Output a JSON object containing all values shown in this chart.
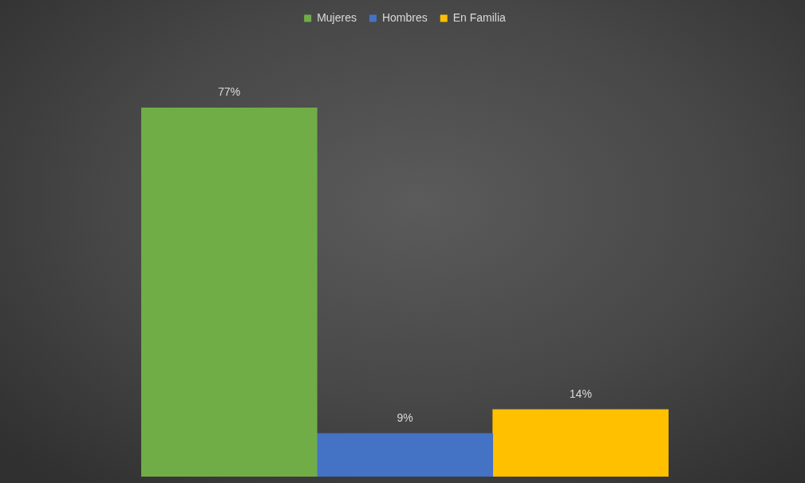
{
  "chart_data": {
    "type": "bar",
    "categories": [
      null
    ],
    "series": [
      {
        "name": "Mujeres",
        "color": "#70ad47",
        "values": [
          77
        ],
        "value_labels": [
          "77%"
        ]
      },
      {
        "name": "Hombres",
        "color": "#4472c4",
        "values": [
          9
        ],
        "value_labels": [
          "9%"
        ]
      },
      {
        "name": "En Familia",
        "color": "#ffc000",
        "values": [
          14
        ],
        "value_labels": [
          "14%"
        ]
      }
    ],
    "legend": "top",
    "grid": false
  }
}
